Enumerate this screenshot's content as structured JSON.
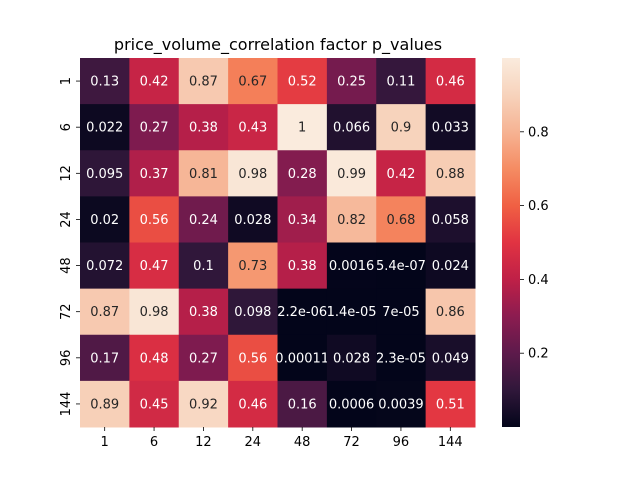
{
  "chart_data": {
    "type": "heatmap",
    "title": "price_volume_correlation factor p_values",
    "x_categories": [
      "1",
      "6",
      "12",
      "24",
      "48",
      "72",
      "96",
      "144"
    ],
    "y_categories": [
      "1",
      "6",
      "12",
      "24",
      "48",
      "72",
      "96",
      "144"
    ],
    "values": [
      [
        0.13,
        0.42,
        0.87,
        0.67,
        0.52,
        0.25,
        0.11,
        0.46
      ],
      [
        0.022,
        0.27,
        0.38,
        0.43,
        1.0,
        0.066,
        0.9,
        0.033
      ],
      [
        0.095,
        0.37,
        0.81,
        0.98,
        0.28,
        0.99,
        0.42,
        0.88
      ],
      [
        0.02,
        0.56,
        0.24,
        0.028,
        0.34,
        0.82,
        0.68,
        0.058
      ],
      [
        0.072,
        0.47,
        0.1,
        0.73,
        0.38,
        0.0016,
        5.4e-07,
        0.024
      ],
      [
        0.87,
        0.98,
        0.38,
        0.098,
        2.2e-06,
        1.4e-05,
        7e-05,
        0.86
      ],
      [
        0.17,
        0.48,
        0.27,
        0.56,
        0.00011,
        0.028,
        2.3e-05,
        0.049
      ],
      [
        0.89,
        0.45,
        0.92,
        0.46,
        0.16,
        0.0006,
        0.0039,
        0.51
      ]
    ],
    "annotations": [
      [
        "0.13",
        "0.42",
        "0.87",
        "0.67",
        "0.52",
        "0.25",
        "0.11",
        "0.46"
      ],
      [
        "0.022",
        "0.27",
        "0.38",
        "0.43",
        "1",
        "0.066",
        "0.9",
        "0.033"
      ],
      [
        "0.095",
        "0.37",
        "0.81",
        "0.98",
        "0.28",
        "0.99",
        "0.42",
        "0.88"
      ],
      [
        "0.02",
        "0.56",
        "0.24",
        "0.028",
        "0.34",
        "0.82",
        "0.68",
        "0.058"
      ],
      [
        "0.072",
        "0.47",
        "0.1",
        "0.73",
        "0.38",
        "0.0016",
        "5.4e-07",
        "0.024"
      ],
      [
        "0.87",
        "0.98",
        "0.38",
        "0.098",
        "2.2e-06",
        "1.4e-05",
        "7e-05",
        "0.86"
      ],
      [
        "0.17",
        "0.48",
        "0.27",
        "0.56",
        "0.00011",
        "0.028",
        "2.3e-05",
        "0.049"
      ],
      [
        "0.89",
        "0.45",
        "0.92",
        "0.46",
        "0.16",
        "0.0006",
        "0.0039",
        "0.51"
      ]
    ],
    "colorbar": {
      "range": [
        0,
        1
      ],
      "ticks": [
        0.2,
        0.4,
        0.6,
        0.8
      ],
      "tick_labels": [
        "0.2",
        "0.4",
        "0.6",
        "0.8"
      ]
    },
    "colormap": "rocket",
    "colormap_stops": [
      "#03051a",
      "#30173a",
      "#5d1a4b",
      "#8c1c50",
      "#bf2047",
      "#e13342",
      "#f06043",
      "#f58c63",
      "#f6b393",
      "#f7d3bc",
      "#faebdd"
    ]
  }
}
